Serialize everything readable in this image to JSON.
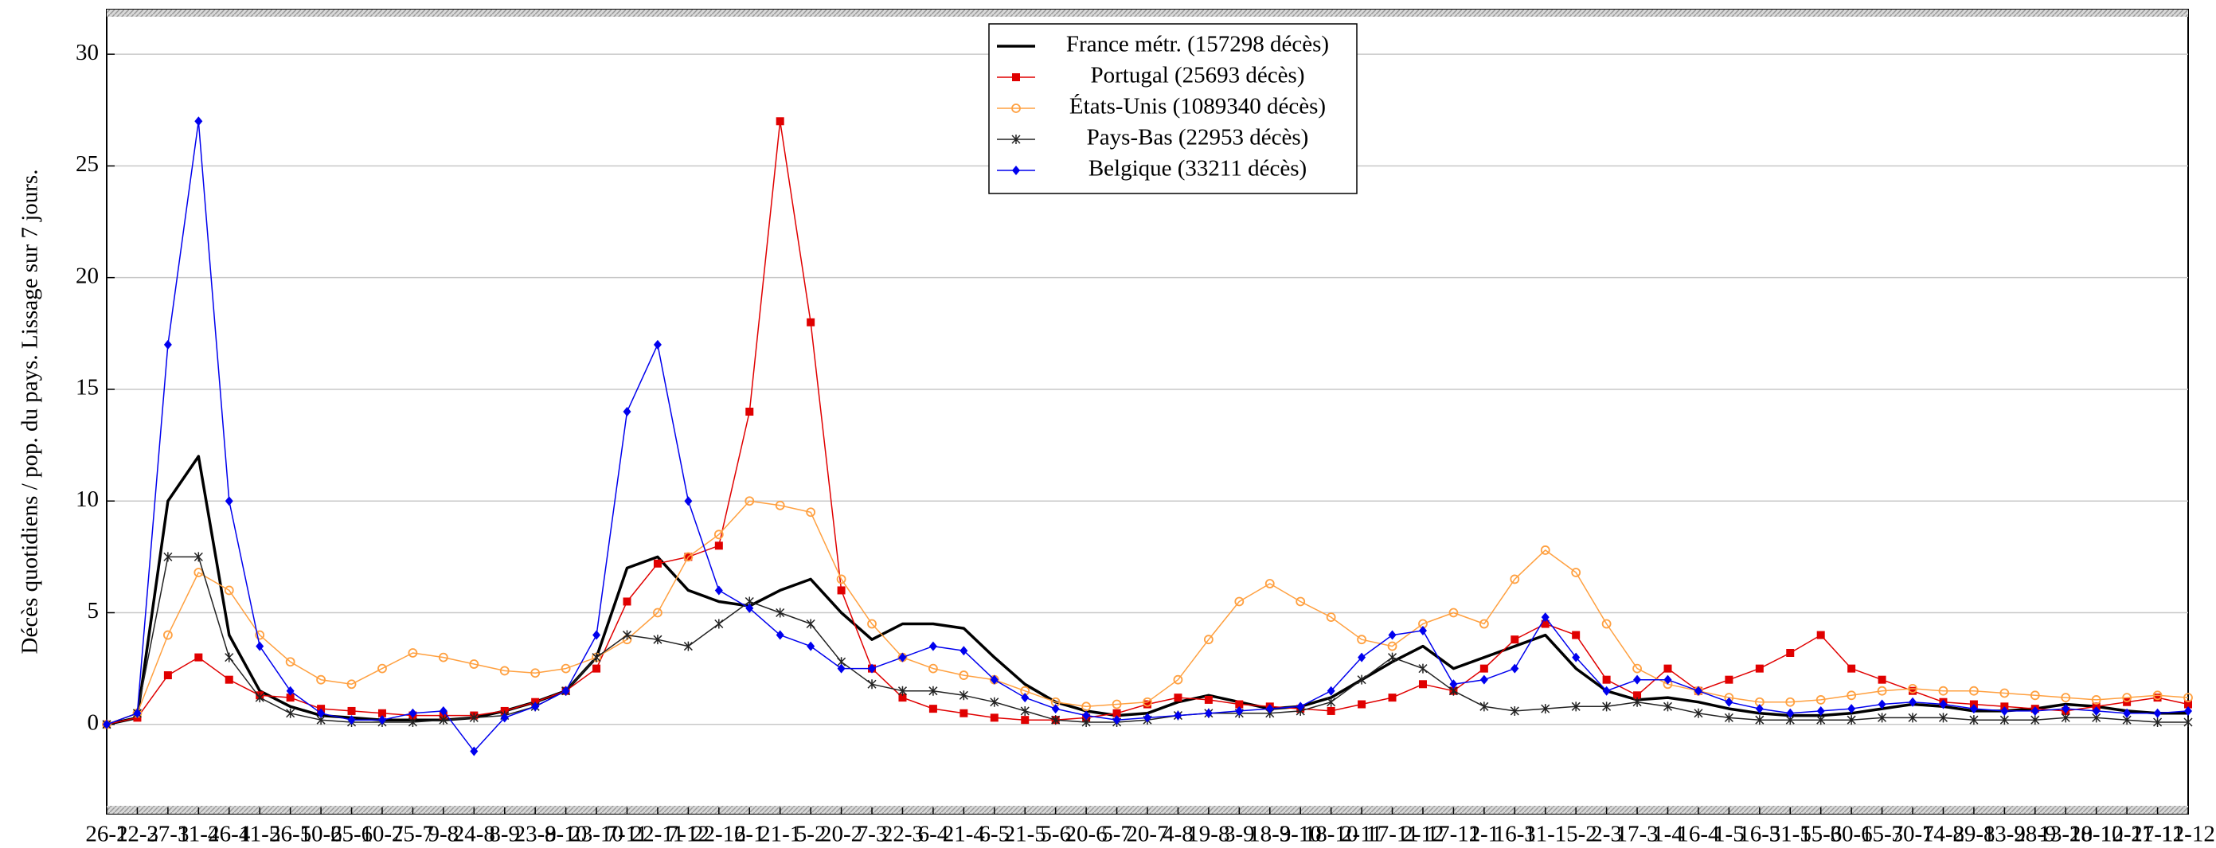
{
  "chart_data": {
    "type": "line",
    "y_label": "Décès quotidiens / pop. du pays. Lissage sur 7 jours.",
    "categories": [
      "26-2",
      "12-3",
      "27-3",
      "11-4",
      "26-4",
      "11-5",
      "26-5",
      "10-6",
      "25-6",
      "10-7",
      "25-7",
      "9-8",
      "24-8",
      "8-9",
      "23-9",
      "8-10",
      "23-10",
      "7-11",
      "22-11",
      "7-12",
      "22-12",
      "6-1",
      "21-1",
      "5-2",
      "20-2",
      "7-3",
      "22-3",
      "6-4",
      "21-4",
      "6-5",
      "21-5",
      "5-6",
      "20-6",
      "5-7",
      "20-7",
      "4-8",
      "19-8",
      "3-9",
      "18-9",
      "3-10",
      "18-10",
      "2-11",
      "17-11",
      "2-12",
      "17-12",
      "1-1",
      "16-1",
      "31-1",
      "15-2",
      "2-3",
      "17-3",
      "1-4",
      "16-4",
      "1-5",
      "16-5",
      "31-5",
      "15-6",
      "30-6",
      "15-7",
      "30-7",
      "14-8",
      "29-8",
      "13-9",
      "28-9",
      "13-10",
      "28-10",
      "12-11",
      "27-11",
      "12-12"
    ],
    "series": [
      {
        "name": "France métr. (157298 décès)",
        "color": "#000000",
        "marker": "none",
        "values": [
          0,
          0.3,
          10,
          12,
          4,
          1.5,
          0.8,
          0.4,
          0.3,
          0.2,
          0.2,
          0.2,
          0.3,
          0.6,
          1.0,
          1.5,
          3,
          7,
          7.5,
          6,
          5.5,
          5.3,
          6,
          6.5,
          5,
          3.8,
          4.5,
          4.5,
          4.3,
          3,
          1.8,
          1.0,
          0.6,
          0.4,
          0.5,
          1.0,
          1.3,
          1.0,
          0.7,
          0.8,
          1.2,
          2.0,
          2.8,
          3.5,
          2.5,
          3.0,
          3.5,
          4.0,
          2.5,
          1.5,
          1.1,
          1.2,
          1.0,
          0.7,
          0.5,
          0.4,
          0.4,
          0.5,
          0.7,
          0.9,
          0.8,
          0.6,
          0.6,
          0.7,
          0.9,
          0.8,
          0.6,
          0.5,
          0.5
        ]
      },
      {
        "name": "Portugal (25693 décès)",
        "color": "#e00000",
        "marker": "square",
        "values": [
          0,
          0.3,
          2.2,
          3.0,
          2.0,
          1.3,
          1.2,
          0.7,
          0.6,
          0.5,
          0.4,
          0.4,
          0.4,
          0.6,
          1.0,
          1.5,
          2.5,
          5.5,
          7.2,
          7.5,
          8,
          14,
          27,
          18,
          6,
          2.5,
          1.2,
          0.7,
          0.5,
          0.3,
          0.2,
          0.2,
          0.3,
          0.5,
          0.9,
          1.2,
          1.1,
          0.9,
          0.8,
          0.7,
          0.6,
          0.9,
          1.2,
          1.8,
          1.5,
          2.5,
          3.8,
          4.5,
          4.0,
          2.0,
          1.3,
          2.5,
          1.5,
          2.0,
          2.5,
          3.2,
          4.0,
          2.5,
          2.0,
          1.5,
          1.0,
          0.9,
          0.8,
          0.7,
          0.6,
          0.8,
          1.0,
          1.2,
          0.9
        ]
      },
      {
        "name": "États-Unis (1089340 décès)",
        "color": "#ffa040",
        "marker": "circle",
        "values": [
          0,
          0.5,
          4,
          6.8,
          6.0,
          4.0,
          2.8,
          2.0,
          1.8,
          2.5,
          3.2,
          3.0,
          2.7,
          2.4,
          2.3,
          2.5,
          3.0,
          3.8,
          5.0,
          7.5,
          8.5,
          10.0,
          9.8,
          9.5,
          6.5,
          4.5,
          3.0,
          2.5,
          2.2,
          2.0,
          1.5,
          1.0,
          0.8,
          0.9,
          1.0,
          2.0,
          3.8,
          5.5,
          6.3,
          5.5,
          4.8,
          3.8,
          3.5,
          4.5,
          5.0,
          4.5,
          6.5,
          7.8,
          6.8,
          4.5,
          2.5,
          1.8,
          1.5,
          1.2,
          1.0,
          1.0,
          1.1,
          1.3,
          1.5,
          1.6,
          1.5,
          1.5,
          1.4,
          1.3,
          1.2,
          1.1,
          1.2,
          1.3,
          1.2
        ]
      },
      {
        "name": "Pays-Bas (22953 décès)",
        "color": "#222222",
        "marker": "star",
        "values": [
          0,
          0.5,
          7.5,
          7.5,
          3.0,
          1.2,
          0.5,
          0.2,
          0.1,
          0.1,
          0.1,
          0.2,
          0.3,
          0.4,
          0.8,
          1.5,
          3.0,
          4.0,
          3.8,
          3.5,
          4.5,
          5.5,
          5.0,
          4.5,
          2.8,
          1.8,
          1.5,
          1.5,
          1.3,
          1.0,
          0.6,
          0.2,
          0.1,
          0.1,
          0.2,
          0.4,
          0.5,
          0.5,
          0.5,
          0.6,
          1.0,
          2.0,
          3.0,
          2.5,
          1.5,
          0.8,
          0.6,
          0.7,
          0.8,
          0.8,
          1.0,
          0.8,
          0.5,
          0.3,
          0.2,
          0.2,
          0.2,
          0.2,
          0.3,
          0.3,
          0.3,
          0.2,
          0.2,
          0.2,
          0.3,
          0.3,
          0.2,
          0.1,
          0.1
        ]
      },
      {
        "name": "Belgique (33211 décès)",
        "color": "#0000ee",
        "marker": "diamond",
        "values": [
          0,
          0.5,
          17,
          27,
          10,
          3.5,
          1.5,
          0.5,
          0.2,
          0.2,
          0.5,
          0.6,
          -1.2,
          0.3,
          0.8,
          1.5,
          4,
          14,
          17,
          10,
          6,
          5.2,
          4.0,
          3.5,
          2.5,
          2.5,
          3.0,
          3.5,
          3.3,
          2.0,
          1.2,
          0.7,
          0.4,
          0.2,
          0.3,
          0.4,
          0.5,
          0.6,
          0.7,
          0.8,
          1.5,
          3.0,
          4.0,
          4.2,
          1.8,
          2.0,
          2.5,
          4.8,
          3.0,
          1.5,
          2.0,
          2.0,
          1.5,
          1.0,
          0.7,
          0.5,
          0.6,
          0.7,
          0.9,
          1.0,
          0.9,
          0.7,
          0.6,
          0.6,
          0.7,
          0.6,
          0.5,
          0.5,
          0.6
        ]
      }
    ],
    "ylim": [
      -4,
      32
    ],
    "yticks": [
      0,
      5,
      10,
      15,
      20,
      25,
      30
    ],
    "grid": true,
    "legend": "top"
  }
}
